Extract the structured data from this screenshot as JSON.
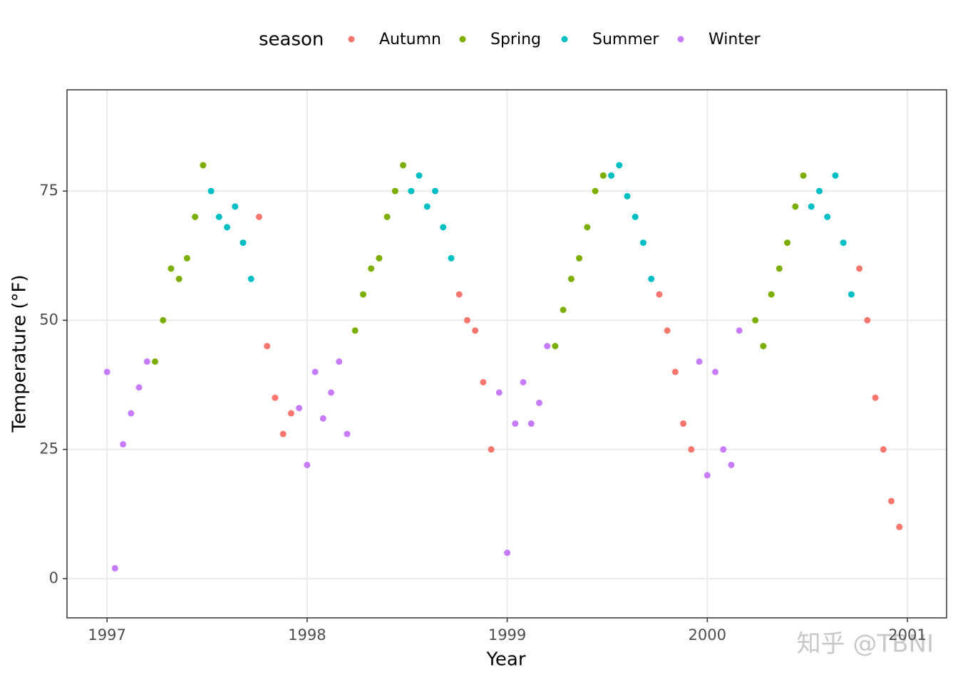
{
  "chart_data": {
    "type": "scatter",
    "x_label": "Year",
    "y_label": "Temperature (°F)",
    "legend_title": "season",
    "watermark": "知乎 @TBNI",
    "xlim": [
      1996.8,
      2001.196
    ],
    "xticks": [
      1997,
      1998,
      1999,
      2000,
      2001
    ],
    "ylim": [
      -7.6,
      94.6
    ],
    "yticks": [
      0,
      25,
      50,
      75
    ],
    "grid": true,
    "legend_position": "top",
    "series": [
      {
        "name": "Autumn",
        "color": "#F8766D",
        "x": [
          1997.76,
          1997.8,
          1997.84,
          1997.88,
          1997.92,
          1998.76,
          1998.8,
          1998.84,
          1998.88,
          1998.92,
          1999.76,
          1999.8,
          1999.84,
          1999.88,
          1999.92,
          2000.76,
          2000.8,
          2000.84,
          2000.88,
          2000.92,
          2000.96
        ],
        "values": [
          70,
          45,
          35,
          28,
          32,
          55,
          50,
          48,
          38,
          25,
          55,
          48,
          40,
          30,
          25,
          60,
          50,
          35,
          25,
          15,
          10
        ]
      },
      {
        "name": "Spring",
        "color": "#7CAE00",
        "x": [
          1997.24,
          1997.28,
          1997.32,
          1997.36,
          1997.4,
          1997.44,
          1997.48,
          1998.24,
          1998.28,
          1998.32,
          1998.36,
          1998.4,
          1998.44,
          1998.48,
          1999.24,
          1999.28,
          1999.32,
          1999.36,
          1999.4,
          1999.44,
          1999.48,
          2000.24,
          2000.28,
          2000.32,
          2000.36,
          2000.4,
          2000.44,
          2000.48
        ],
        "values": [
          42,
          50,
          60,
          58,
          62,
          70,
          80,
          48,
          55,
          60,
          62,
          70,
          75,
          80,
          45,
          52,
          58,
          62,
          68,
          75,
          78,
          50,
          45,
          55,
          60,
          65,
          72,
          78
        ]
      },
      {
        "name": "Summer",
        "color": "#00BFC4",
        "x": [
          1997.52,
          1997.56,
          1997.6,
          1997.64,
          1997.68,
          1997.72,
          1998.52,
          1998.56,
          1998.6,
          1998.64,
          1998.68,
          1998.72,
          1999.52,
          1999.56,
          1999.6,
          1999.64,
          1999.68,
          1999.72,
          2000.52,
          2000.56,
          2000.6,
          2000.64,
          2000.68,
          2000.72
        ],
        "values": [
          75,
          70,
          68,
          72,
          65,
          58,
          75,
          78,
          72,
          75,
          68,
          62,
          78,
          80,
          74,
          70,
          65,
          58,
          72,
          75,
          70,
          78,
          65,
          55
        ]
      },
      {
        "name": "Winter",
        "color": "#C77CFF",
        "x": [
          1997.0,
          1997.04,
          1997.08,
          1997.12,
          1997.16,
          1997.2,
          1997.96,
          1998.0,
          1998.04,
          1998.08,
          1998.12,
          1998.16,
          1998.2,
          1998.96,
          1999.0,
          1999.04,
          1999.08,
          1999.12,
          1999.16,
          1999.2,
          1999.96,
          2000.0,
          2000.04,
          2000.08,
          2000.12,
          2000.16
        ],
        "values": [
          40,
          2,
          26,
          32,
          37,
          42,
          33,
          22,
          40,
          31,
          36,
          42,
          28,
          36,
          5,
          30,
          38,
          30,
          34,
          45,
          42,
          20,
          40,
          25,
          22,
          48
        ]
      }
    ]
  }
}
